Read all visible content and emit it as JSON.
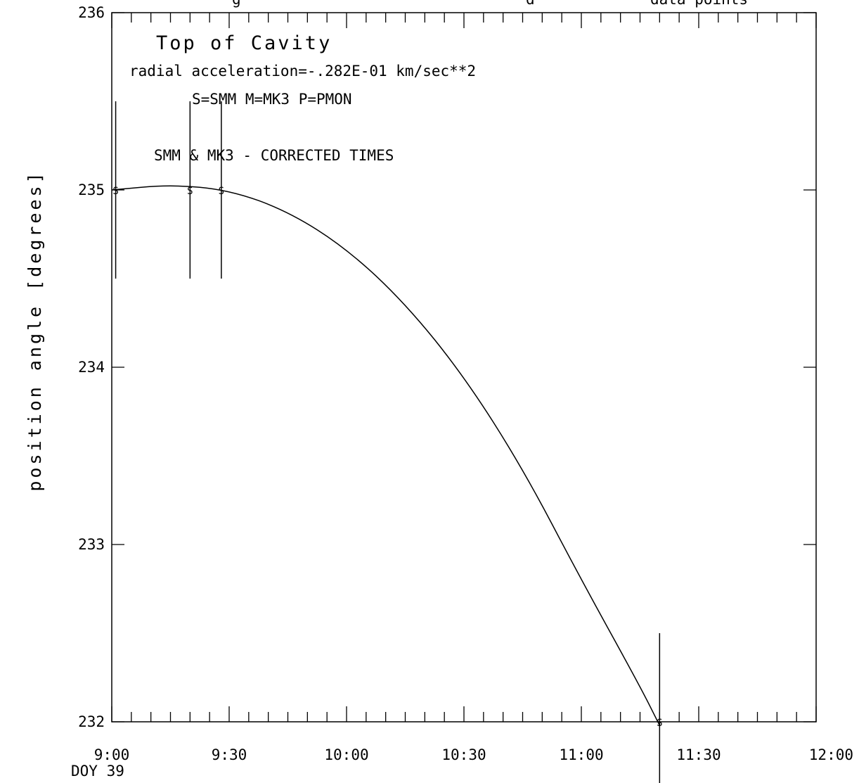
{
  "chart_data": {
    "type": "line",
    "title": "Top of Cavity",
    "header_fragments": [
      "g",
      "d",
      "data points"
    ],
    "annotations": [
      "radial acceleration=-.282E-01  km/sec**2",
      "S=SMM  M=MK3  P=PMON",
      "SMM & MK3 - CORRECTED TIMES"
    ],
    "ylabel": "position angle [degrees]",
    "xlabel": "",
    "x_sublabel": "DOY 39",
    "xlim_minutes_after_9h": [
      0,
      180
    ],
    "ylim": [
      232,
      236
    ],
    "x_tick_labels": [
      "9:00",
      "9:30",
      "10:00",
      "10:30",
      "11:00",
      "11:30",
      "12:00"
    ],
    "y_tick_labels": [
      "232",
      "233",
      "234",
      "235",
      "236"
    ],
    "series": [
      {
        "marker": "S",
        "points": [
          {
            "time": "9:01",
            "y": 235.0,
            "y_low": 234.5,
            "y_high": 235.5
          },
          {
            "time": "9:20",
            "y": 235.0,
            "y_low": 234.5,
            "y_high": 235.5
          },
          {
            "time": "9:28",
            "y": 235.0,
            "y_low": 234.5,
            "y_high": 235.5
          },
          {
            "time": "11:20",
            "y": 232.0,
            "y_low": 231.5,
            "y_high": 232.5
          }
        ]
      }
    ],
    "fit_curve": {
      "x": [
        "9:00",
        "9:15",
        "9:30",
        "9:45",
        "10:00",
        "10:15",
        "10:30",
        "10:45",
        "11:00",
        "11:15",
        "11:20"
      ],
      "y": [
        235.0,
        235.03,
        235.0,
        234.88,
        234.67,
        234.36,
        233.95,
        233.43,
        232.8,
        232.2,
        231.98
      ]
    }
  }
}
